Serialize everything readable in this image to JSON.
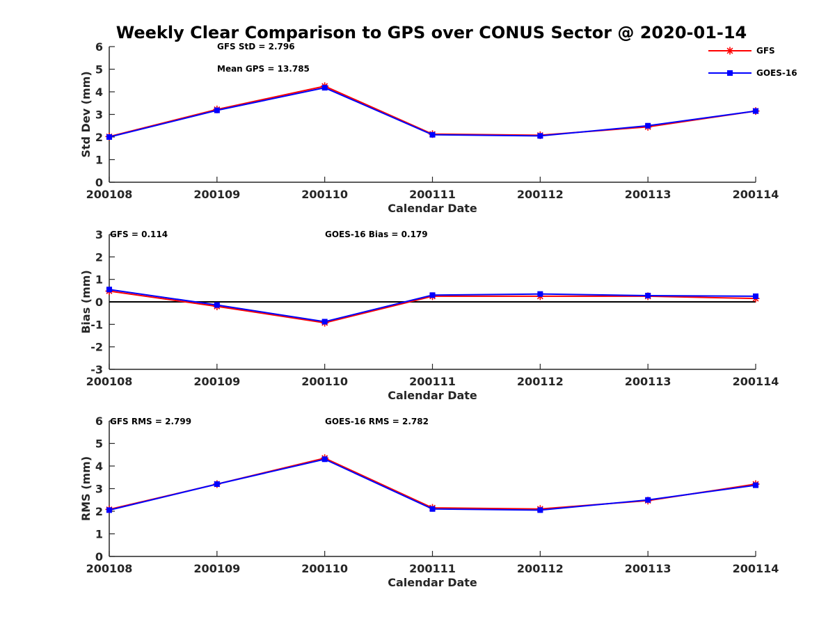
{
  "figure": {
    "title": "Weekly Clear Comparison to GPS over CONUS Sector @ 2020-01-14"
  },
  "legend": {
    "placement": "top-right",
    "entries": [
      {
        "label": "GFS",
        "color": "#ff0000",
        "marker": "asterisk"
      },
      {
        "label": "GOES-16",
        "color": "#0000ff",
        "marker": "square"
      }
    ]
  },
  "chart_data": [
    {
      "type": "line",
      "xlabel": "Calendar Date",
      "ylabel": "Std Dev (mm)",
      "ylim": [
        0,
        6
      ],
      "yticks": [
        0,
        1,
        2,
        3,
        4,
        5,
        6
      ],
      "categories": [
        "200108",
        "200109",
        "200110",
        "200111",
        "200112",
        "200113",
        "200114"
      ],
      "annotations": [
        "GFS StD = 2.796",
        "Mean GPS = 13.785"
      ],
      "zero_line": false,
      "series": [
        {
          "name": "GFS",
          "color": "#ff0000",
          "values": [
            2.02,
            3.22,
            4.25,
            2.13,
            2.08,
            2.45,
            3.15
          ]
        },
        {
          "name": "GOES-16",
          "color": "#0000ff",
          "values": [
            2.0,
            3.18,
            4.18,
            2.1,
            2.05,
            2.5,
            3.15
          ]
        }
      ]
    },
    {
      "type": "line",
      "xlabel": "Calendar Date",
      "ylabel": "Bias (mm)",
      "ylim": [
        -3,
        3
      ],
      "yticks": [
        -3,
        -2,
        -1,
        0,
        1,
        2,
        3
      ],
      "categories": [
        "200108",
        "200109",
        "200110",
        "200111",
        "200112",
        "200113",
        "200114"
      ],
      "annotations": [
        "GFS = 0.114",
        "GOES-16 Bias  = 0.179"
      ],
      "zero_line": true,
      "series": [
        {
          "name": "GFS",
          "color": "#ff0000",
          "values": [
            0.48,
            -0.2,
            -0.93,
            0.25,
            0.25,
            0.25,
            0.15
          ]
        },
        {
          "name": "GOES-16",
          "color": "#0000ff",
          "values": [
            0.55,
            -0.14,
            -0.88,
            0.3,
            0.35,
            0.28,
            0.25
          ]
        }
      ]
    },
    {
      "type": "line",
      "xlabel": "Calendar Date",
      "ylabel": "RMS (mm)",
      "ylim": [
        0,
        6
      ],
      "yticks": [
        0,
        1,
        2,
        3,
        4,
        5,
        6
      ],
      "categories": [
        "200108",
        "200109",
        "200110",
        "200111",
        "200112",
        "200113",
        "200114"
      ],
      "annotations": [
        "GFS RMS = 2.799",
        "GOES-16 RMS = 2.782"
      ],
      "zero_line": false,
      "series": [
        {
          "name": "GFS",
          "color": "#ff0000",
          "values": [
            2.08,
            3.2,
            4.35,
            2.15,
            2.1,
            2.47,
            3.2
          ]
        },
        {
          "name": "GOES-16",
          "color": "#0000ff",
          "values": [
            2.05,
            3.2,
            4.3,
            2.1,
            2.05,
            2.5,
            3.15
          ]
        }
      ]
    }
  ]
}
